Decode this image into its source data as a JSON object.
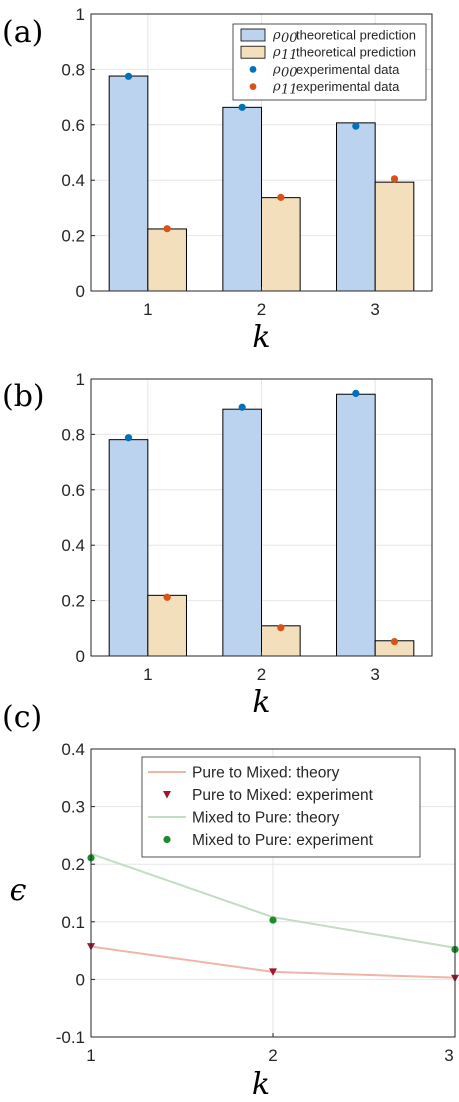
{
  "colors": {
    "rho00_bar": "#bcd3ef",
    "rho11_bar": "#f4dfbd",
    "rho00_point": "#0072bd",
    "rho11_point": "#d95319",
    "pure_to_mixed_line": "#f1b4a8",
    "pure_to_mixed_marker": "#a2142f",
    "mixed_to_pure_line": "#c3dcc3",
    "mixed_to_pure_marker": "#1a8c2a",
    "grid": "#e6e6e6",
    "axis": "#262626"
  },
  "chart_data": [
    {
      "panel_label": "(a)",
      "type": "bar",
      "categories": [
        "1",
        "2",
        "3"
      ],
      "xlabel": "k",
      "ylabel": "",
      "ylim": [
        0,
        1
      ],
      "yticks": [
        "0",
        "0.2",
        "0.4",
        "0.6",
        "0.8",
        "1"
      ],
      "grid": true,
      "legend_position": "top-right",
      "series": [
        {
          "name_symbol": "ρ",
          "name_sub": "00",
          "name_text": "theoretical prediction",
          "kind": "bar",
          "values": [
            0.776,
            0.663,
            0.607
          ]
        },
        {
          "name_symbol": "ρ",
          "name_sub": "11",
          "name_text": "theoretical prediction",
          "kind": "bar",
          "values": [
            0.224,
            0.337,
            0.393
          ]
        },
        {
          "name_symbol": "ρ",
          "name_sub": "00",
          "name_text": "experimental data",
          "kind": "scatter",
          "values": [
            0.775,
            0.663,
            0.595
          ]
        },
        {
          "name_symbol": "ρ",
          "name_sub": "11",
          "name_text": "experimental data",
          "kind": "scatter",
          "values": [
            0.225,
            0.338,
            0.405
          ]
        }
      ]
    },
    {
      "panel_label": "(b)",
      "type": "bar",
      "categories": [
        "1",
        "2",
        "3"
      ],
      "xlabel": "k",
      "ylabel": "",
      "ylim": [
        0,
        1
      ],
      "yticks": [
        "0",
        "0.2",
        "0.4",
        "0.6",
        "0.8",
        "1"
      ],
      "grid": true,
      "series": [
        {
          "kind": "bar",
          "values": [
            0.781,
            0.891,
            0.945
          ]
        },
        {
          "kind": "bar",
          "values": [
            0.219,
            0.109,
            0.055
          ]
        },
        {
          "kind": "scatter",
          "values": [
            0.788,
            0.898,
            0.948
          ]
        },
        {
          "kind": "scatter",
          "values": [
            0.212,
            0.102,
            0.052
          ]
        }
      ]
    },
    {
      "panel_label": "(c)",
      "type": "line",
      "x": [
        1,
        2,
        3
      ],
      "xticks": [
        "1",
        "2",
        "3"
      ],
      "xlabel": "k",
      "ylabel": "ϵ",
      "xlim": [
        1,
        3
      ],
      "ylim": [
        -0.1,
        0.4
      ],
      "yticks": [
        "-0.1",
        "0",
        "0.1",
        "0.2",
        "0.3",
        "0.4"
      ],
      "grid": true,
      "legend_position": "top-right",
      "series": [
        {
          "name": "Pure to Mixed: theory",
          "kind": "line",
          "values": [
            0.057,
            0.013,
            0.003
          ]
        },
        {
          "name": "Pure to Mixed: experiment",
          "kind": "scatter",
          "marker": "triangle-down",
          "values": [
            0.057,
            0.013,
            0.002
          ]
        },
        {
          "name": "Mixed to Pure: theory",
          "kind": "line",
          "values": [
            0.218,
            0.108,
            0.055
          ]
        },
        {
          "name": "Mixed to Pure: experiment",
          "kind": "scatter",
          "marker": "circle",
          "values": [
            0.211,
            0.103,
            0.052
          ]
        }
      ]
    }
  ]
}
